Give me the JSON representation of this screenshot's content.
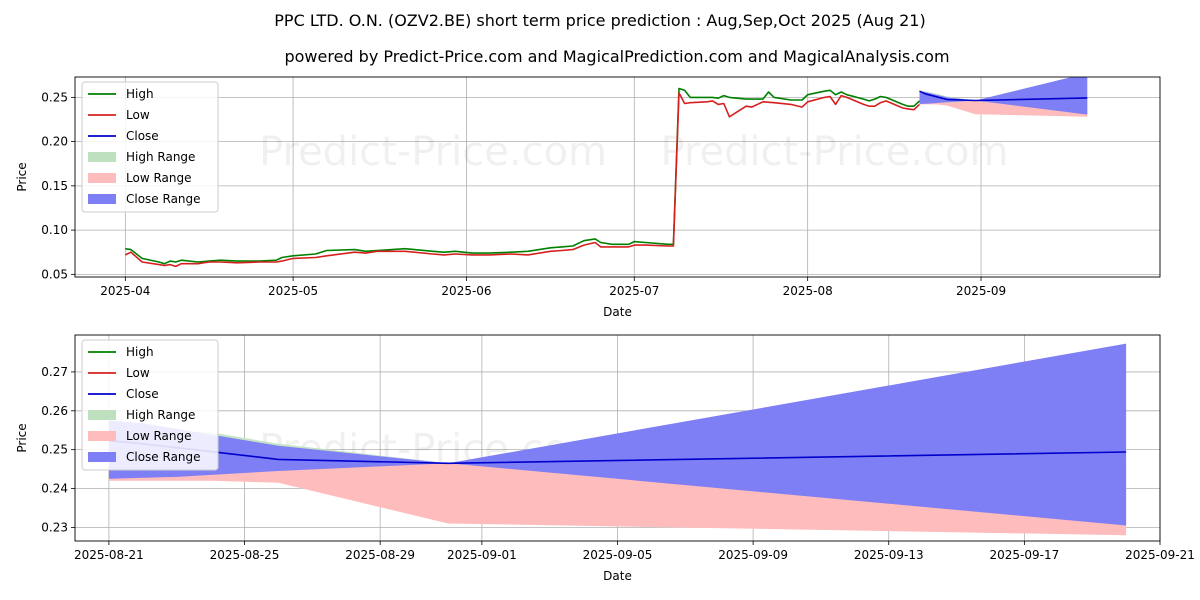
{
  "title": "PPC LTD. O.N. (OZV2.BE) short term price prediction : Aug,Sep,Oct 2025 (Aug 21)",
  "subtitle": "powered by Predict-Price.com and MagicalPrediction.com and MagicalAnalysis.com",
  "watermark": "Predict-Price.com",
  "colors": {
    "high": "#008000",
    "low": "#d62020",
    "close": "#0000cc",
    "high_range": "#bfe0bf",
    "low_range": "#ffbcbc",
    "close_range": "#7f7ff5"
  },
  "legend": {
    "position": "top-left",
    "items": [
      "High",
      "Low",
      "Close",
      "High Range",
      "Low Range",
      "Close Range"
    ]
  },
  "chart_data": [
    {
      "type": "line",
      "xlabel": "Date",
      "ylabel": "Price",
      "xlim": [
        "2025-03-23",
        "2025-10-03"
      ],
      "ylim": [
        0.047,
        0.273
      ],
      "grid": true,
      "x_ticks": [
        "2025-04-01",
        "2025-05-01",
        "2025-06-01",
        "2025-07-01",
        "2025-08-01",
        "2025-09-01"
      ],
      "x_tick_labels": [
        "2025-04",
        "2025-05",
        "2025-06",
        "2025-07",
        "2025-08",
        "2025-09"
      ],
      "y_ticks": [
        0.05,
        0.1,
        0.15,
        0.2,
        0.25
      ],
      "y_tick_labels": [
        "0.05",
        "0.10",
        "0.15",
        "0.20",
        "0.25"
      ],
      "series": [
        {
          "name": "High",
          "points": [
            [
              "2025-04-01",
              0.079
            ],
            [
              "2025-04-02",
              0.078
            ],
            [
              "2025-04-04",
              0.068
            ],
            [
              "2025-04-07",
              0.064
            ],
            [
              "2025-04-08",
              0.062
            ],
            [
              "2025-04-09",
              0.065
            ],
            [
              "2025-04-10",
              0.064
            ],
            [
              "2025-04-11",
              0.066
            ],
            [
              "2025-04-14",
              0.064
            ],
            [
              "2025-04-16",
              0.065
            ],
            [
              "2025-04-18",
              0.066
            ],
            [
              "2025-04-21",
              0.065
            ],
            [
              "2025-04-25",
              0.065
            ],
            [
              "2025-04-28",
              0.066
            ],
            [
              "2025-04-29",
              0.069
            ],
            [
              "2025-05-01",
              0.071
            ],
            [
              "2025-05-05",
              0.073
            ],
            [
              "2025-05-07",
              0.077
            ],
            [
              "2025-05-12",
              0.078
            ],
            [
              "2025-05-14",
              0.076
            ],
            [
              "2025-05-16",
              0.077
            ],
            [
              "2025-05-21",
              0.079
            ],
            [
              "2025-05-26",
              0.076
            ],
            [
              "2025-05-28",
              0.075
            ],
            [
              "2025-05-30",
              0.076
            ],
            [
              "2025-06-02",
              0.074
            ],
            [
              "2025-06-05",
              0.074
            ],
            [
              "2025-06-09",
              0.075
            ],
            [
              "2025-06-12",
              0.076
            ],
            [
              "2025-06-16",
              0.08
            ],
            [
              "2025-06-18",
              0.081
            ],
            [
              "2025-06-20",
              0.082
            ],
            [
              "2025-06-22",
              0.088
            ],
            [
              "2025-06-24",
              0.09
            ],
            [
              "2025-06-25",
              0.086
            ],
            [
              "2025-06-27",
              0.084
            ],
            [
              "2025-06-30",
              0.084
            ],
            [
              "2025-07-01",
              0.087
            ],
            [
              "2025-07-03",
              0.086
            ],
            [
              "2025-07-07",
              0.084
            ],
            [
              "2025-07-08",
              0.084
            ],
            [
              "2025-07-09",
              0.26
            ],
            [
              "2025-07-10",
              0.258
            ],
            [
              "2025-07-11",
              0.25
            ],
            [
              "2025-07-14",
              0.25
            ],
            [
              "2025-07-15",
              0.25
            ],
            [
              "2025-07-16",
              0.249
            ],
            [
              "2025-07-17",
              0.252
            ],
            [
              "2025-07-18",
              0.25
            ],
            [
              "2025-07-21",
              0.248
            ],
            [
              "2025-07-24",
              0.248
            ],
            [
              "2025-07-25",
              0.256
            ],
            [
              "2025-07-26",
              0.25
            ],
            [
              "2025-07-29",
              0.247
            ],
            [
              "2025-07-31",
              0.247
            ],
            [
              "2025-08-01",
              0.253
            ],
            [
              "2025-08-04",
              0.257
            ],
            [
              "2025-08-05",
              0.258
            ],
            [
              "2025-08-06",
              0.253
            ],
            [
              "2025-08-07",
              0.256
            ],
            [
              "2025-08-08",
              0.253
            ],
            [
              "2025-08-11",
              0.248
            ],
            [
              "2025-08-12",
              0.246
            ],
            [
              "2025-08-13",
              0.248
            ],
            [
              "2025-08-14",
              0.251
            ],
            [
              "2025-08-15",
              0.25
            ],
            [
              "2025-08-18",
              0.242
            ],
            [
              "2025-08-19",
              0.24
            ],
            [
              "2025-08-20",
              0.24
            ],
            [
              "2025-08-21",
              0.246
            ]
          ]
        },
        {
          "name": "Low",
          "points": [
            [
              "2025-04-01",
              0.072
            ],
            [
              "2025-04-02",
              0.075
            ],
            [
              "2025-04-04",
              0.064
            ],
            [
              "2025-04-07",
              0.061
            ],
            [
              "2025-04-08",
              0.06
            ],
            [
              "2025-04-09",
              0.061
            ],
            [
              "2025-04-10",
              0.059
            ],
            [
              "2025-04-11",
              0.062
            ],
            [
              "2025-04-14",
              0.062
            ],
            [
              "2025-04-16",
              0.064
            ],
            [
              "2025-04-18",
              0.064
            ],
            [
              "2025-04-21",
              0.063
            ],
            [
              "2025-04-25",
              0.064
            ],
            [
              "2025-04-28",
              0.064
            ],
            [
              "2025-04-29",
              0.065
            ],
            [
              "2025-05-01",
              0.068
            ],
            [
              "2025-05-05",
              0.069
            ],
            [
              "2025-05-07",
              0.071
            ],
            [
              "2025-05-12",
              0.075
            ],
            [
              "2025-05-14",
              0.074
            ],
            [
              "2025-05-16",
              0.076
            ],
            [
              "2025-05-21",
              0.076
            ],
            [
              "2025-05-26",
              0.073
            ],
            [
              "2025-05-28",
              0.072
            ],
            [
              "2025-05-30",
              0.073
            ],
            [
              "2025-06-02",
              0.072
            ],
            [
              "2025-06-05",
              0.072
            ],
            [
              "2025-06-09",
              0.073
            ],
            [
              "2025-06-12",
              0.072
            ],
            [
              "2025-06-16",
              0.076
            ],
            [
              "2025-06-18",
              0.077
            ],
            [
              "2025-06-20",
              0.078
            ],
            [
              "2025-06-22",
              0.083
            ],
            [
              "2025-06-24",
              0.086
            ],
            [
              "2025-06-25",
              0.081
            ],
            [
              "2025-06-27",
              0.081
            ],
            [
              "2025-06-30",
              0.081
            ],
            [
              "2025-07-01",
              0.083
            ],
            [
              "2025-07-03",
              0.083
            ],
            [
              "2025-07-07",
              0.082
            ],
            [
              "2025-07-08",
              0.082
            ],
            [
              "2025-07-09",
              0.255
            ],
            [
              "2025-07-10",
              0.243
            ],
            [
              "2025-07-11",
              0.244
            ],
            [
              "2025-07-14",
              0.245
            ],
            [
              "2025-07-15",
              0.246
            ],
            [
              "2025-07-16",
              0.242
            ],
            [
              "2025-07-17",
              0.243
            ],
            [
              "2025-07-18",
              0.228
            ],
            [
              "2025-07-21",
              0.24
            ],
            [
              "2025-07-22",
              0.239
            ],
            [
              "2025-07-24",
              0.245
            ],
            [
              "2025-07-26",
              0.244
            ],
            [
              "2025-07-29",
              0.242
            ],
            [
              "2025-07-31",
              0.239
            ],
            [
              "2025-08-01",
              0.245
            ],
            [
              "2025-08-04",
              0.25
            ],
            [
              "2025-08-05",
              0.251
            ],
            [
              "2025-08-06",
              0.242
            ],
            [
              "2025-08-07",
              0.252
            ],
            [
              "2025-08-08",
              0.25
            ],
            [
              "2025-08-11",
              0.242
            ],
            [
              "2025-08-12",
              0.24
            ],
            [
              "2025-08-13",
              0.24
            ],
            [
              "2025-08-14",
              0.244
            ],
            [
              "2025-08-15",
              0.246
            ],
            [
              "2025-08-18",
              0.238
            ],
            [
              "2025-08-19",
              0.237
            ],
            [
              "2025-08-20",
              0.236
            ],
            [
              "2025-08-21",
              0.242
            ]
          ]
        },
        {
          "name": "Close",
          "points": [
            [
              "2025-08-21",
              0.257
            ],
            [
              "2025-08-22",
              0.254
            ],
            [
              "2025-08-25",
              0.249
            ],
            [
              "2025-08-26",
              0.2475
            ],
            [
              "2025-08-31",
              0.2465
            ],
            [
              "2025-09-20",
              0.2494
            ]
          ]
        },
        {
          "name": "High Range",
          "upper": [
            [
              "2025-08-21",
              0.258
            ],
            [
              "2025-08-24",
              0.254
            ],
            [
              "2025-08-26",
              0.251
            ],
            [
              "2025-08-31",
              0.2465
            ]
          ],
          "lower": [
            [
              "2025-08-21",
              0.244
            ],
            [
              "2025-08-24",
              0.244
            ],
            [
              "2025-08-26",
              0.244
            ],
            [
              "2025-08-31",
              0.2465
            ]
          ]
        },
        {
          "name": "Low Range",
          "upper": [
            [
              "2025-08-21",
              0.247
            ],
            [
              "2025-08-24",
              0.247
            ],
            [
              "2025-08-26",
              0.247
            ],
            [
              "2025-08-31",
              0.2465
            ],
            [
              "2025-09-20",
              0.2465
            ]
          ],
          "lower": [
            [
              "2025-08-21",
              0.242
            ],
            [
              "2025-08-24",
              0.242
            ],
            [
              "2025-08-26",
              0.2405
            ],
            [
              "2025-08-31",
              0.231
            ],
            [
              "2025-09-20",
              0.228
            ]
          ]
        },
        {
          "name": "Close Range",
          "upper": [
            [
              "2025-08-21",
              0.257
            ],
            [
              "2025-08-22",
              0.256
            ],
            [
              "2025-08-26",
              0.25
            ],
            [
              "2025-08-31",
              0.2465
            ],
            [
              "2025-09-20",
              0.2773
            ]
          ],
          "lower": [
            [
              "2025-08-21",
              0.2425
            ],
            [
              "2025-08-23",
              0.243
            ],
            [
              "2025-08-26",
              0.2445
            ],
            [
              "2025-08-31",
              0.2465
            ],
            [
              "2025-09-20",
              0.2305
            ]
          ]
        }
      ]
    },
    {
      "type": "line",
      "xlabel": "Date",
      "ylabel": "Price",
      "xlim": [
        "2025-08-20",
        "2025-09-21"
      ],
      "ylim": [
        0.2265,
        0.2795
      ],
      "grid": true,
      "x_ticks": [
        "2025-08-21",
        "2025-08-25",
        "2025-08-29",
        "2025-09-01",
        "2025-09-05",
        "2025-09-09",
        "2025-09-13",
        "2025-09-17",
        "2025-09-21"
      ],
      "x_tick_labels": [
        "2025-08-21",
        "2025-08-25",
        "2025-08-29",
        "2025-09-01",
        "2025-09-05",
        "2025-09-09",
        "2025-09-13",
        "2025-09-17",
        "2025-09-21"
      ],
      "y_ticks": [
        0.23,
        0.24,
        0.25,
        0.26,
        0.27
      ],
      "y_tick_labels": [
        "0.23",
        "0.24",
        "0.25",
        "0.26",
        "0.27"
      ],
      "series": [
        {
          "name": "Close",
          "points": [
            [
              "2025-08-21",
              0.2523
            ],
            [
              "2025-08-22",
              0.2515
            ],
            [
              "2025-08-24",
              0.2495
            ],
            [
              "2025-08-26",
              0.2475
            ],
            [
              "2025-08-31",
              0.2465
            ],
            [
              "2025-09-20",
              0.2494
            ]
          ]
        },
        {
          "name": "High Range",
          "upper": [
            [
              "2025-08-21",
              0.2555
            ],
            [
              "2025-08-24",
              0.2545
            ],
            [
              "2025-08-26",
              0.2515
            ],
            [
              "2025-08-31",
              0.2465
            ]
          ],
          "lower": [
            [
              "2025-08-21",
              0.244
            ],
            [
              "2025-08-24",
              0.2445
            ],
            [
              "2025-08-26",
              0.245
            ],
            [
              "2025-08-31",
              0.2465
            ]
          ]
        },
        {
          "name": "Low Range",
          "upper": [
            [
              "2025-08-21",
              0.2465
            ],
            [
              "2025-08-24",
              0.2465
            ],
            [
              "2025-08-26",
              0.2465
            ],
            [
              "2025-08-31",
              0.2465
            ],
            [
              "2025-09-20",
              0.2465
            ]
          ],
          "lower": [
            [
              "2025-08-21",
              0.242
            ],
            [
              "2025-08-24",
              0.242
            ],
            [
              "2025-08-26",
              0.2415
            ],
            [
              "2025-08-31",
              0.231
            ],
            [
              "2025-09-20",
              0.228
            ]
          ]
        },
        {
          "name": "Close Range",
          "upper": [
            [
              "2025-08-21",
              0.2575
            ],
            [
              "2025-08-22",
              0.2568
            ],
            [
              "2025-08-26",
              0.251
            ],
            [
              "2025-08-31",
              0.2465
            ],
            [
              "2025-09-20",
              0.2773
            ]
          ],
          "lower": [
            [
              "2025-08-21",
              0.2425
            ],
            [
              "2025-08-23",
              0.243
            ],
            [
              "2025-08-26",
              0.2445
            ],
            [
              "2025-08-31",
              0.2465
            ],
            [
              "2025-09-20",
              0.2305
            ]
          ]
        }
      ]
    }
  ]
}
